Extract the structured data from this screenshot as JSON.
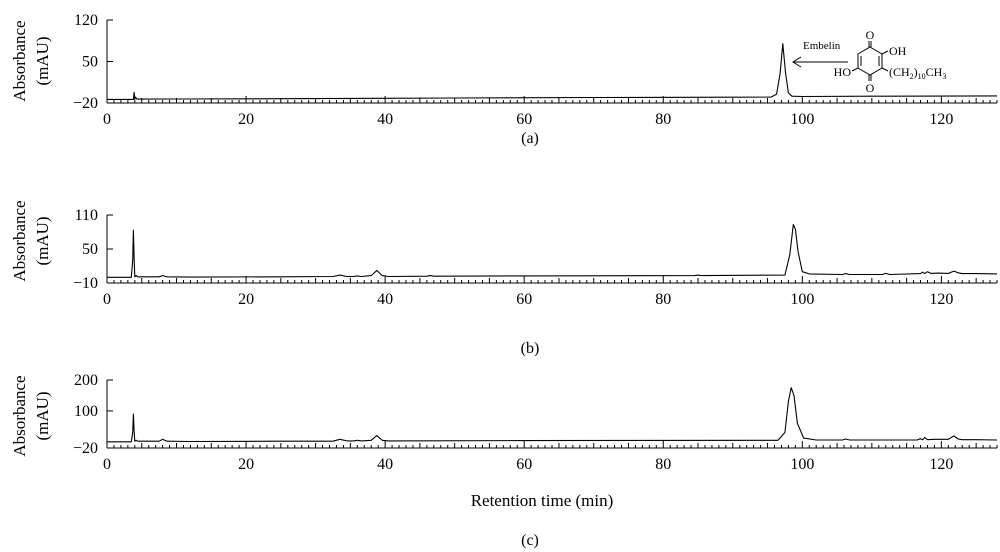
{
  "chart_data": [
    {
      "type": "line",
      "panel_label": "(a)",
      "ylabel_line1": "Absorbance",
      "ylabel_line2": "(mAU)",
      "xlabel": "",
      "xlim": [
        0,
        128
      ],
      "ylim": [
        -20,
        120
      ],
      "yticks": [
        -20,
        50,
        120
      ],
      "xticks": [
        0,
        20,
        40,
        60,
        80,
        100,
        120
      ],
      "annotation": {
        "label": "Embelin",
        "formula_oh": "OH",
        "formula_ho": "HO",
        "formula_o": "O",
        "formula_chain": "(CH",
        "formula_chain_sub1": "2",
        "formula_chain_paren": ")",
        "formula_chain_sub2": "10",
        "formula_chain_end": "CH",
        "formula_chain_sub3": "3"
      },
      "series": [
        {
          "x": [
            0,
            3.8,
            3.9,
            4.0,
            4.1,
            4.3,
            10,
            30,
            50,
            70,
            90,
            95.5,
            96.3,
            96.8,
            97.2,
            97.6,
            98.0,
            98.5,
            100,
            110,
            128
          ],
          "y": [
            -14,
            -14,
            -2,
            -14,
            -10,
            -13.5,
            -13.3,
            -12.5,
            -11.5,
            -10.8,
            -10.2,
            -10,
            -5,
            30,
            80,
            30,
            -3,
            -8.5,
            -9,
            -8.5,
            -8
          ]
        }
      ]
    },
    {
      "type": "line",
      "panel_label": "(b)",
      "ylabel_line1": "Absorbance",
      "ylabel_line2": "(mAU)",
      "xlabel": "",
      "xlim": [
        0,
        128
      ],
      "ylim": [
        -10,
        110
      ],
      "yticks": [
        -10,
        50,
        110
      ],
      "xticks": [
        0,
        20,
        40,
        60,
        80,
        100,
        120
      ],
      "series": [
        {
          "x": [
            0,
            3.5,
            3.7,
            3.8,
            3.9,
            4.0,
            4.2,
            4.4,
            4.8,
            7.5,
            8.0,
            8.6,
            12,
            25,
            32.5,
            33.5,
            34.5,
            35.5,
            36,
            36.6,
            38,
            38.8,
            39.6,
            40.5,
            46,
            46.5,
            47,
            60,
            84.5,
            85,
            85.5,
            97.5,
            98.2,
            98.7,
            99.0,
            99.4,
            100.0,
            101,
            105.8,
            106.2,
            106.8,
            111.5,
            112,
            112.6,
            117,
            117.3,
            117.6,
            118,
            118.5,
            119.5,
            121,
            121.8,
            122.4,
            123,
            125,
            128
          ],
          "y": [
            0,
            0,
            30,
            83,
            35,
            1,
            3,
            1,
            1,
            1,
            3,
            1,
            0.5,
            1,
            1.5,
            4,
            1.5,
            1.5,
            2.5,
            1.5,
            3,
            12,
            3,
            1.5,
            2,
            3,
            2,
            2.5,
            3,
            4,
            3,
            4,
            40,
            93,
            85,
            45,
            10,
            6,
            5,
            6.5,
            5,
            5,
            7,
            5,
            6.5,
            9,
            6.5,
            10,
            7,
            7.5,
            7,
            11,
            8,
            6.5,
            6.5,
            6
          ]
        }
      ]
    },
    {
      "type": "line",
      "panel_label": "(c)",
      "ylabel_line1": "Absorbance",
      "ylabel_line2": "(mAU)",
      "xlabel": "Retention time (min)",
      "xlim": [
        0,
        128
      ],
      "ylim": [
        -20,
        200
      ],
      "yticks": [
        -20,
        100,
        200
      ],
      "xticks": [
        0,
        20,
        40,
        60,
        80,
        100,
        120
      ],
      "series": [
        {
          "x": [
            0,
            3.5,
            3.7,
            3.8,
            3.9,
            4.0,
            4.2,
            4.4,
            4.8,
            7.5,
            8.0,
            8.6,
            12,
            25,
            32.5,
            33.5,
            34.5,
            35.5,
            36,
            36.6,
            38,
            38.8,
            39.6,
            40.5,
            60,
            96.5,
            97.5,
            98.0,
            98.4,
            98.8,
            99.3,
            100.2,
            102,
            105.8,
            106.2,
            106.8,
            116.5,
            117,
            117.3,
            117.6,
            118,
            119,
            121,
            121.8,
            122.4,
            123,
            125,
            128
          ],
          "y": [
            0,
            0,
            30,
            90,
            35,
            2,
            5,
            2,
            2,
            2,
            8,
            2,
            1,
            2,
            2,
            8,
            3,
            3,
            5,
            3,
            5,
            20,
            5,
            3,
            4,
            5,
            30,
            130,
            175,
            150,
            60,
            12,
            6,
            6,
            9,
            6,
            6,
            10,
            7,
            14,
            7,
            8,
            8,
            19,
            9,
            7,
            7,
            6
          ]
        }
      ]
    }
  ]
}
